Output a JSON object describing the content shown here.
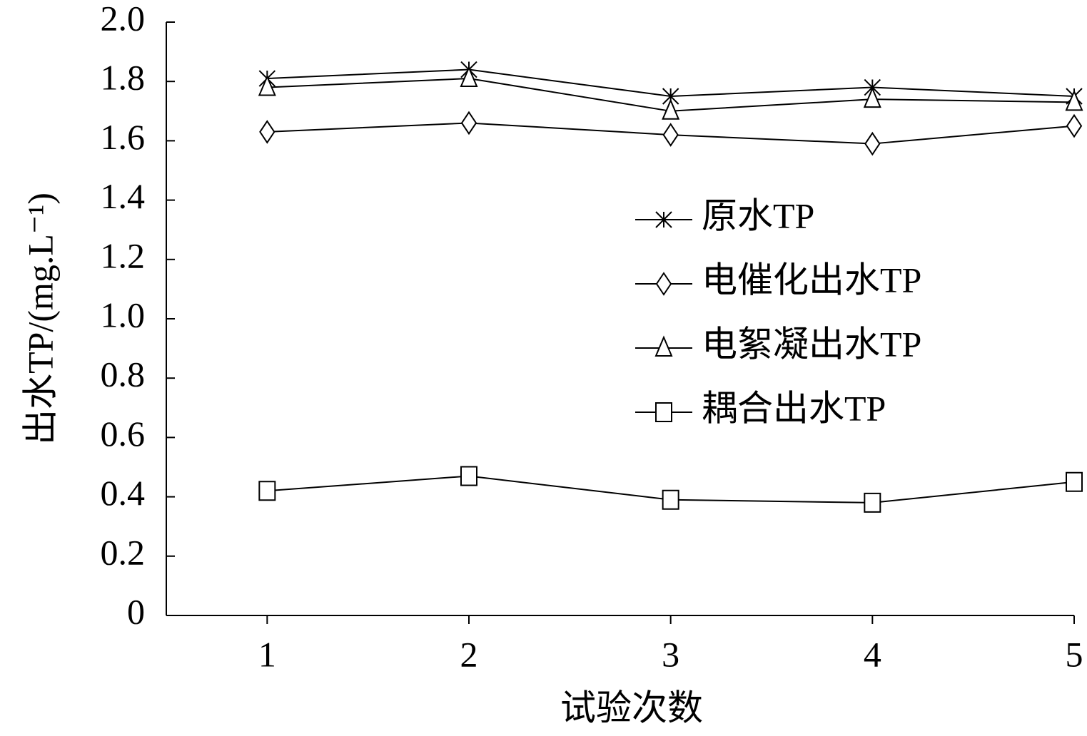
{
  "chart_data": {
    "type": "line",
    "x_label": "试验次数",
    "y_label": "出水TP/(mg.L⁻¹)",
    "x": [
      1,
      2,
      3,
      4,
      5
    ],
    "xlim": [
      0.5,
      5
    ],
    "xticks": [
      1,
      2,
      3,
      4,
      5
    ],
    "ylim": [
      0,
      2
    ],
    "yticks": [
      0,
      0.2,
      0.4,
      0.6,
      0.8,
      {
        "value": 1,
        "label": "1.0"
      },
      1.2,
      1.4,
      1.6,
      1.8,
      {
        "value": 2,
        "label": "2.0"
      }
    ],
    "series": [
      {
        "name": "原水TP",
        "color": "#000000",
        "marker": "x",
        "values": [
          1.81,
          1.84,
          1.75,
          1.78,
          1.75
        ]
      },
      {
        "name": "电催化出水TP",
        "color": "#000000",
        "marker": "diamond",
        "values": [
          1.63,
          1.66,
          1.62,
          1.59,
          1.65
        ]
      },
      {
        "name": "电絮凝出水TP",
        "color": "#000000",
        "marker": "triangle",
        "values": [
          1.78,
          1.81,
          1.7,
          1.74,
          1.73
        ]
      },
      {
        "name": "耦合出水TP",
        "color": "#000000",
        "marker": "square",
        "values": [
          0.42,
          0.47,
          0.39,
          0.38,
          0.45
        ]
      }
    ]
  }
}
